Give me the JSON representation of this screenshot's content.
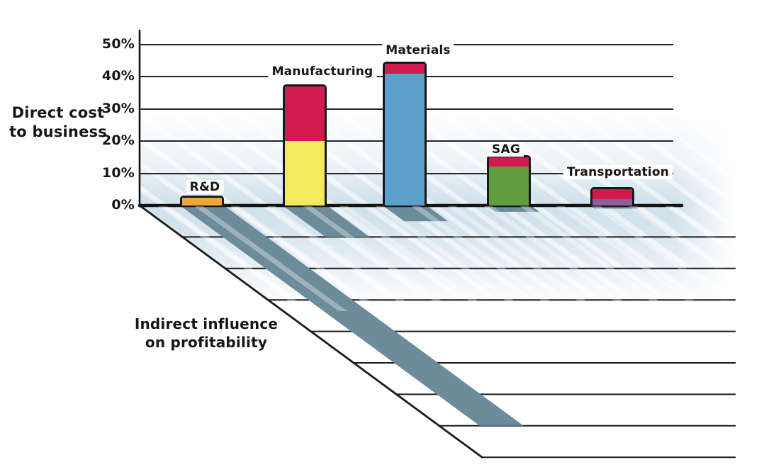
{
  "labels": {
    "direct_line1": "Direct cost",
    "direct_line2": "to business",
    "indirect_line1": "Indirect influence",
    "indirect_line2": "on profitability"
  },
  "colors": {
    "background": "#FFFFFF",
    "line": "#1C1C1C",
    "text": "#161616",
    "shadow_band": "#6C8B9B",
    "floor_tint": "#CEDFEA",
    "orange": "#F0A63A",
    "yellow": "#F3E95E",
    "crimson": "#D31A4F",
    "blue": "#5C9FCA",
    "green": "#5F9D40",
    "purple": "#8B5F9C"
  },
  "chart_data": {
    "type": "bar",
    "stacked": true,
    "title": "",
    "categories": [
      "R&D",
      "Manufacturing",
      "Materials",
      "SAG",
      "Transportation"
    ],
    "y_axis": {
      "label": "Direct cost to business",
      "unit": "%",
      "min": 0,
      "max": 50,
      "ticks": [
        "0%",
        "10%",
        "20%",
        "30%",
        "40%",
        "50%"
      ],
      "gridlines": true
    },
    "floor_axis": {
      "label": "Indirect influence on profitability",
      "gridline_rows": 8
    },
    "bars": [
      {
        "category": "R&D",
        "total_pct": 2.5,
        "segments": [
          {
            "color_name": "orange",
            "color": "#F0A63A",
            "from_pct": 0,
            "to_pct": 2.5
          }
        ],
        "indirect_shadow_rows": 7
      },
      {
        "category": "Manufacturing",
        "total_pct": 37,
        "segments": [
          {
            "color_name": "yellow",
            "color": "#F3E95E",
            "from_pct": 0,
            "to_pct": 20
          },
          {
            "color_name": "crimson",
            "color": "#D31A4F",
            "from_pct": 20,
            "to_pct": 37
          }
        ],
        "indirect_shadow_rows": 1
      },
      {
        "category": "Materials",
        "total_pct": 44,
        "segments": [
          {
            "color_name": "blue",
            "color": "#5C9FCA",
            "from_pct": 0,
            "to_pct": 41
          },
          {
            "color_name": "crimson",
            "color": "#D31A4F",
            "from_pct": 41,
            "to_pct": 44
          }
        ],
        "indirect_shadow_rows": 0.5
      },
      {
        "category": "SAG",
        "total_pct": 15,
        "segments": [
          {
            "color_name": "green",
            "color": "#5F9D40",
            "from_pct": 0,
            "to_pct": 12
          },
          {
            "color_name": "crimson",
            "color": "#D31A4F",
            "from_pct": 12,
            "to_pct": 15
          }
        ],
        "indirect_shadow_rows": 0.2
      },
      {
        "category": "Transportation",
        "total_pct": 5,
        "segments": [
          {
            "color_name": "purple",
            "color": "#8B5F9C",
            "from_pct": 0,
            "to_pct": 2
          },
          {
            "color_name": "crimson",
            "color": "#D31A4F",
            "from_pct": 2,
            "to_pct": 5
          }
        ],
        "indirect_shadow_rows": 0.1
      }
    ]
  }
}
